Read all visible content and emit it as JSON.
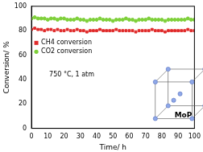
{
  "chart_data": {
    "type": "scatter",
    "x_label": "Time/ h",
    "y_label": "Conversion/ %",
    "annotations": [
      "750 °C, 1 atm",
      "MoP"
    ],
    "x": [
      0,
      2,
      4,
      6,
      8,
      10,
      12,
      14,
      16,
      18,
      20,
      22,
      24,
      26,
      28,
      30,
      32,
      34,
      36,
      38,
      40,
      42,
      44,
      46,
      48,
      50,
      52,
      54,
      56,
      58,
      60,
      62,
      64,
      66,
      68,
      70,
      72,
      74,
      76,
      78,
      80,
      82,
      84,
      86,
      88,
      90,
      92,
      94,
      96,
      98,
      100
    ],
    "series": [
      {
        "name": "CH4 conversion",
        "color": "#e02b2b",
        "marker": "square",
        "values": [
          81,
          82,
          81,
          81,
          80,
          81,
          81,
          80,
          81,
          80,
          80,
          81,
          80,
          80,
          81,
          80,
          80,
          79,
          80,
          80,
          80,
          81,
          80,
          80,
          80,
          80,
          81,
          80,
          80,
          80,
          80,
          80,
          79,
          80,
          80,
          80,
          80,
          81,
          80,
          80,
          80,
          79,
          80,
          80,
          80,
          80,
          80,
          80,
          81,
          80,
          80
        ]
      },
      {
        "name": "CO2 conversion",
        "color": "#7ed03a",
        "marker": "circle",
        "values": [
          90,
          91,
          90,
          90,
          90,
          89,
          90,
          90,
          89,
          90,
          90,
          89,
          89,
          89,
          90,
          89,
          89,
          88,
          89,
          89,
          89,
          90,
          89,
          89,
          89,
          88,
          89,
          89,
          89,
          90,
          89,
          89,
          88,
          89,
          89,
          89,
          90,
          89,
          89,
          89,
          89,
          88,
          89,
          89,
          89,
          89,
          89,
          89,
          90,
          89,
          89
        ]
      }
    ],
    "xlim": [
      0,
      100
    ],
    "xticks": [
      0,
      10,
      20,
      30,
      40,
      50,
      60,
      70,
      80,
      90,
      100
    ],
    "ylim": [
      0,
      100
    ],
    "yticks": [
      0,
      20,
      40,
      60,
      80,
      100
    ],
    "legend": "upper left",
    "grid": false
  }
}
